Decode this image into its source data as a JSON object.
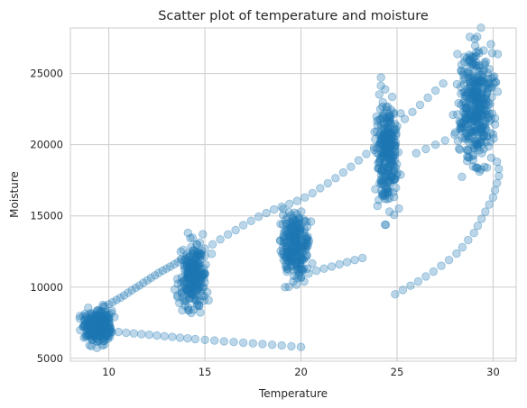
{
  "chart_data": {
    "type": "scatter",
    "title": "Scatter plot of temperature and moisture",
    "xlabel": "Temperature",
    "ylabel": "Moisture",
    "xlim": [
      8.0,
      31.2
    ],
    "ylim": [
      4800,
      28200
    ],
    "xticks": [
      10,
      15,
      20,
      25,
      30
    ],
    "yticks": [
      5000,
      10000,
      15000,
      20000,
      25000
    ],
    "grid": true,
    "marker_color": "#1f77b4",
    "marker_alpha": 0.3,
    "series": [
      {
        "points": [
          [
            9.8,
            8650
          ],
          [
            10.0,
            8800
          ],
          [
            10.2,
            8950
          ],
          [
            10.4,
            9100
          ],
          [
            10.6,
            9250
          ],
          [
            10.8,
            9420
          ],
          [
            11.0,
            9600
          ],
          [
            11.2,
            9780
          ],
          [
            11.4,
            9950
          ],
          [
            11.6,
            10120
          ],
          [
            11.8,
            10300
          ],
          [
            12.0,
            10480
          ],
          [
            12.2,
            10650
          ],
          [
            12.4,
            10820
          ],
          [
            12.6,
            11000
          ],
          [
            12.8,
            11150
          ],
          [
            13.0,
            11300
          ],
          [
            13.2,
            11450
          ],
          [
            13.4,
            11600
          ],
          [
            13.6,
            11750
          ],
          [
            13.8,
            11900
          ],
          [
            14.0,
            12050
          ],
          [
            14.2,
            12200
          ],
          [
            14.6,
            12450
          ],
          [
            15.0,
            12700
          ],
          [
            15.4,
            13000
          ],
          [
            15.8,
            13350
          ],
          [
            16.2,
            13700
          ],
          [
            16.6,
            14000
          ],
          [
            17.0,
            14350
          ],
          [
            17.4,
            14650
          ],
          [
            17.8,
            14950
          ],
          [
            18.2,
            15200
          ],
          [
            18.6,
            15450
          ],
          [
            19.0,
            15650
          ],
          [
            19.4,
            15850
          ],
          [
            19.8,
            16050
          ],
          [
            20.2,
            16300
          ],
          [
            20.6,
            16600
          ],
          [
            21.0,
            16950
          ],
          [
            21.4,
            17300
          ],
          [
            21.8,
            17650
          ],
          [
            22.2,
            18050
          ],
          [
            22.6,
            18450
          ],
          [
            23.0,
            18900
          ],
          [
            23.4,
            19350
          ],
          [
            23.8,
            19800
          ],
          [
            24.2,
            20300
          ],
          [
            24.6,
            20800
          ],
          [
            25.0,
            21300
          ],
          [
            25.4,
            21800
          ],
          [
            25.8,
            22300
          ],
          [
            26.2,
            22800
          ],
          [
            26.6,
            23300
          ],
          [
            27.0,
            23800
          ],
          [
            27.4,
            24300
          ],
          [
            10.1,
            6950
          ],
          [
            10.5,
            6850
          ],
          [
            10.9,
            6800
          ],
          [
            11.3,
            6750
          ],
          [
            11.7,
            6700
          ],
          [
            12.1,
            6650
          ],
          [
            12.5,
            6600
          ],
          [
            12.9,
            6550
          ],
          [
            13.3,
            6500
          ],
          [
            13.7,
            6450
          ],
          [
            14.1,
            6400
          ],
          [
            14.5,
            6350
          ],
          [
            15.0,
            6300
          ],
          [
            15.5,
            6250
          ],
          [
            16.0,
            6200
          ],
          [
            16.5,
            6150
          ],
          [
            17.0,
            6100
          ],
          [
            17.5,
            6050
          ],
          [
            18.0,
            6000
          ],
          [
            18.5,
            5950
          ],
          [
            19.0,
            5900
          ],
          [
            19.5,
            5850
          ],
          [
            20.0,
            5800
          ],
          [
            19.6,
            10400
          ],
          [
            20.0,
            10700
          ],
          [
            20.4,
            10950
          ],
          [
            20.8,
            11150
          ],
          [
            21.2,
            11300
          ],
          [
            21.6,
            11450
          ],
          [
            22.0,
            11600
          ],
          [
            22.4,
            11750
          ],
          [
            22.8,
            11900
          ],
          [
            23.2,
            12050
          ],
          [
            24.9,
            9500
          ],
          [
            25.3,
            9800
          ],
          [
            25.7,
            10100
          ],
          [
            26.1,
            10400
          ],
          [
            26.5,
            10750
          ],
          [
            26.9,
            11100
          ],
          [
            27.3,
            11500
          ],
          [
            27.7,
            11900
          ],
          [
            28.1,
            12350
          ],
          [
            28.4,
            12800
          ],
          [
            28.7,
            13300
          ],
          [
            29.0,
            13800
          ],
          [
            29.2,
            14300
          ],
          [
            29.4,
            14800
          ],
          [
            29.6,
            15300
          ],
          [
            29.8,
            15800
          ],
          [
            30.0,
            16300
          ],
          [
            30.1,
            16800
          ],
          [
            30.2,
            17300
          ],
          [
            30.3,
            17800
          ],
          [
            30.3,
            18300
          ],
          [
            30.2,
            18800
          ],
          [
            26.0,
            19400
          ],
          [
            26.5,
            19700
          ],
          [
            27.0,
            20000
          ],
          [
            27.5,
            20300
          ],
          [
            28.0,
            20700
          ],
          [
            28.3,
            21200
          ]
        ]
      }
    ],
    "clusters": [
      {
        "cx": 9.4,
        "cy": 7300,
        "sx": 0.35,
        "sy": 550,
        "n": 260
      },
      {
        "cx": 14.4,
        "cy": 10800,
        "sx": 0.35,
        "sy": 1100,
        "n": 240
      },
      {
        "cx": 19.7,
        "cy": 12900,
        "sx": 0.35,
        "sy": 1100,
        "n": 240
      },
      {
        "cx": 24.5,
        "cy": 19500,
        "sx": 0.28,
        "sy": 1900,
        "n": 260
      },
      {
        "cx": 29.1,
        "cy": 22800,
        "sx": 0.45,
        "sy": 2000,
        "n": 380
      }
    ]
  }
}
